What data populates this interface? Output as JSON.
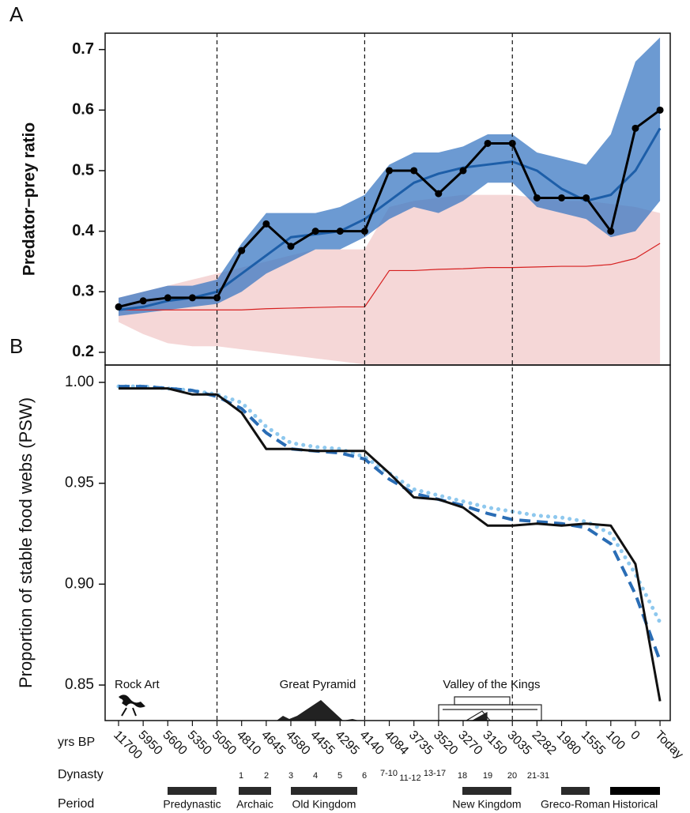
{
  "chart_data": [
    {
      "type": "line",
      "panel_label": "A",
      "ylabel": "Predator−prey ratio",
      "ylim": [
        0.179,
        0.727
      ],
      "yticks": [
        0.2,
        0.3,
        0.4,
        0.5,
        0.6,
        0.7
      ],
      "bands": [
        {
          "color": "#f2c9c9",
          "lower": [
            0.25,
            0.23,
            0.215,
            0.21,
            0.21,
            0.205,
            0.2,
            0.195,
            0.19,
            0.185,
            0.18,
            0.18,
            0.18,
            0.18,
            0.18,
            0.18,
            0.18,
            0.18,
            0.18,
            0.18,
            0.18,
            0.18,
            0.18
          ],
          "upper": [
            0.29,
            0.3,
            0.31,
            0.32,
            0.33,
            0.34,
            0.35,
            0.36,
            0.37,
            0.37,
            0.37,
            0.44,
            0.45,
            0.455,
            0.46,
            0.46,
            0.46,
            0.455,
            0.45,
            0.45,
            0.445,
            0.44,
            0.43
          ]
        },
        {
          "color": "#3b78c3",
          "lower": [
            0.26,
            0.265,
            0.27,
            0.275,
            0.28,
            0.3,
            0.33,
            0.35,
            0.37,
            0.37,
            0.39,
            0.42,
            0.44,
            0.43,
            0.45,
            0.48,
            0.48,
            0.44,
            0.43,
            0.42,
            0.39,
            0.4,
            0.45
          ],
          "upper": [
            0.29,
            0.3,
            0.31,
            0.31,
            0.32,
            0.38,
            0.43,
            0.43,
            0.43,
            0.44,
            0.46,
            0.51,
            0.53,
            0.53,
            0.54,
            0.56,
            0.56,
            0.53,
            0.52,
            0.51,
            0.56,
            0.68,
            0.72
          ]
        }
      ],
      "series": [
        {
          "color": "#d62020",
          "width": 1.2,
          "values": [
            0.27,
            0.27,
            0.27,
            0.27,
            0.27,
            0.27,
            0.272,
            0.273,
            0.274,
            0.275,
            0.275,
            0.335,
            0.335,
            0.337,
            0.338,
            0.34,
            0.34,
            0.341,
            0.342,
            0.342,
            0.345,
            0.355,
            0.38
          ]
        },
        {
          "color": "#1d5ea8",
          "width": 3,
          "values": [
            0.27,
            0.275,
            0.285,
            0.29,
            0.3,
            0.33,
            0.36,
            0.39,
            0.395,
            0.4,
            0.42,
            0.45,
            0.48,
            0.495,
            0.505,
            0.51,
            0.515,
            0.5,
            0.47,
            0.45,
            0.46,
            0.5,
            0.57
          ]
        },
        {
          "color": "#000000",
          "width": 3,
          "markers": true,
          "values": [
            0.275,
            0.285,
            0.29,
            0.29,
            0.29,
            0.368,
            0.412,
            0.375,
            0.4,
            0.4,
            0.4,
            0.5,
            0.5,
            0.462,
            0.5,
            0.545,
            0.545,
            0.455,
            0.455,
            0.455,
            0.4,
            0.57,
            0.6
          ]
        }
      ]
    },
    {
      "type": "line",
      "panel_label": "B",
      "ylabel": "Proportion of stable food webs (PSW)",
      "xlabel": "yrs BP",
      "categories": [
        "11700",
        "5950",
        "5600",
        "5350",
        "5050",
        "4810",
        "4645",
        "4580",
        "4455",
        "4295",
        "4140",
        "4084",
        "3735",
        "3520",
        "3270",
        "3150",
        "3035",
        "2282",
        "1980",
        "1555",
        "100",
        "0",
        "Today"
      ],
      "ylim": [
        0.8324,
        1.0086
      ],
      "yticks": [
        {
          "value": 0.85,
          "label": "0.85"
        },
        {
          "value": 0.9,
          "label": "0.90"
        },
        {
          "value": 0.95,
          "label": "0.95"
        },
        {
          "value": 1.0,
          "label": "1.00"
        }
      ],
      "series": [
        {
          "color": "#8ec8ee",
          "width": 5,
          "dash": "dotted",
          "values": [
            0.998,
            0.998,
            0.997,
            0.996,
            0.994,
            0.99,
            0.978,
            0.97,
            0.968,
            0.967,
            0.963,
            0.955,
            0.947,
            0.944,
            0.941,
            0.938,
            0.936,
            0.934,
            0.933,
            0.931,
            0.925,
            0.905,
            0.881
          ]
        },
        {
          "color": "#2a6db5",
          "width": 4,
          "dash": "dashed",
          "values": [
            0.998,
            0.998,
            0.997,
            0.996,
            0.993,
            0.987,
            0.975,
            0.967,
            0.966,
            0.965,
            0.962,
            0.952,
            0.945,
            0.942,
            0.939,
            0.935,
            0.932,
            0.931,
            0.93,
            0.928,
            0.92,
            0.895,
            0.862
          ]
        },
        {
          "color": "#111111",
          "width": 3,
          "values": [
            0.997,
            0.997,
            0.997,
            0.994,
            0.994,
            0.985,
            0.967,
            0.967,
            0.966,
            0.966,
            0.966,
            0.955,
            0.943,
            0.942,
            0.938,
            0.929,
            0.929,
            0.93,
            0.929,
            0.93,
            0.929,
            0.91,
            0.842
          ]
        }
      ],
      "annotations": [
        "Rock Art",
        "Great Pyramid",
        "Valley of the Kings"
      ],
      "dynasty_label": "Dynasty",
      "dynasties": [
        "1",
        "2",
        "3",
        "4",
        "5",
        "6",
        "7-10",
        "11-12",
        "13-17",
        "18",
        "19",
        "20",
        "21-31"
      ],
      "period_label": "Period",
      "periods": [
        "Predynastic",
        "Archaic",
        "Old Kingdom",
        "New Kingdom",
        "Greco-Roman",
        "Historical"
      ]
    }
  ]
}
